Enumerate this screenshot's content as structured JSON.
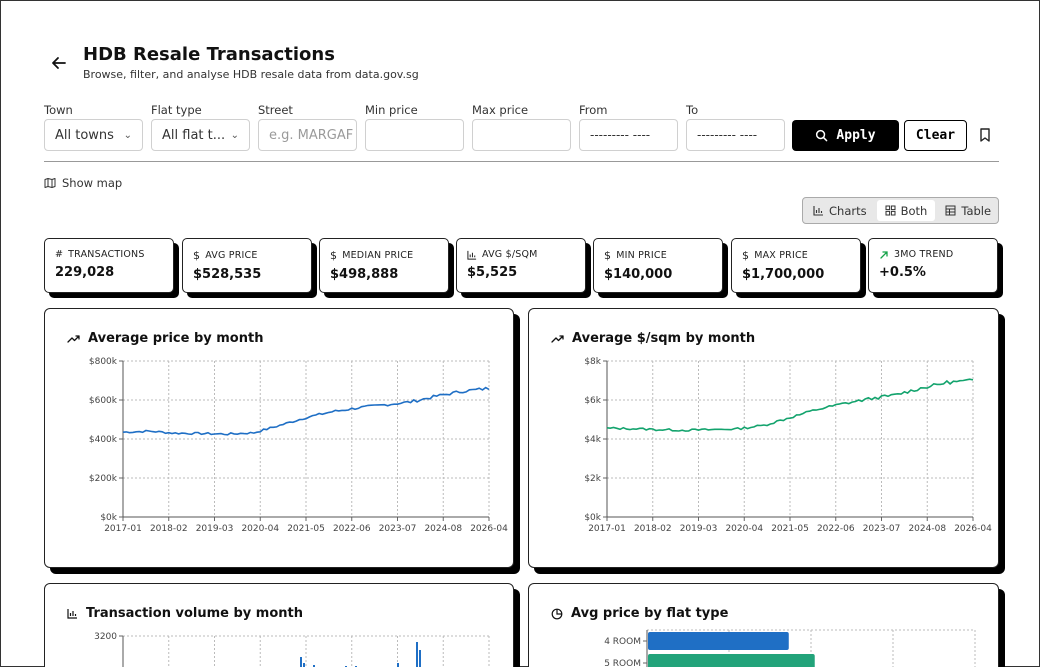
{
  "header": {
    "title": "HDB Resale Transactions",
    "subtitle": "Browse, filter, and analyse HDB resale data from data.gov.sg"
  },
  "filters": {
    "town": {
      "label": "Town",
      "value": "All towns"
    },
    "flat_type": {
      "label": "Flat type",
      "value": "All flat t..."
    },
    "street": {
      "label": "Street",
      "placeholder": "e.g. MARGAF"
    },
    "min_price": {
      "label": "Min price",
      "value": ""
    },
    "max_price": {
      "label": "Max price",
      "value": ""
    },
    "from": {
      "label": "From",
      "value": "--------- ----"
    },
    "to": {
      "label": "To",
      "value": "--------- ----"
    },
    "apply_label": "Apply",
    "clear_label": "Clear"
  },
  "show_map_label": "Show map",
  "view_toggle": {
    "options": [
      "Charts",
      "Both",
      "Table"
    ],
    "selected": "Both"
  },
  "stats": [
    {
      "label": "TRANSACTIONS",
      "value": "229,028",
      "icon": "hash-icon"
    },
    {
      "label": "AVG PRICE",
      "value": "$528,535",
      "icon": "dollar-icon"
    },
    {
      "label": "MEDIAN PRICE",
      "value": "$498,888",
      "icon": "dollar-icon"
    },
    {
      "label": "AVG $/SQM",
      "value": "$5,525",
      "icon": "bar-chart-icon"
    },
    {
      "label": "MIN PRICE",
      "value": "$140,000",
      "icon": "dollar-icon"
    },
    {
      "label": "MAX PRICE",
      "value": "$1,700,000",
      "icon": "dollar-icon"
    },
    {
      "label": "3MO TREND",
      "value": "+0.5%",
      "icon": "trend-up-icon",
      "color": "#16a34a"
    }
  ],
  "panels": {
    "avg_price_title": "Average price by month",
    "avg_sqm_title": "Average $/sqm by month",
    "volume_title": "Transaction volume by month",
    "flat_type_title": "Avg price by flat type"
  },
  "chart_data": [
    {
      "type": "line",
      "title": "Average price by month",
      "color": "#1f6fc5",
      "x_ticks": [
        "2017-01",
        "2018-02",
        "2019-03",
        "2020-04",
        "2021-05",
        "2022-06",
        "2023-07",
        "2024-08",
        "2026-04"
      ],
      "y_ticks": [
        "$0k",
        "$200k",
        "$400k",
        "$600k",
        "$800k"
      ],
      "ylim": [
        0,
        800000
      ],
      "series": [
        {
          "values": [
            435000,
            440000,
            430000,
            428000,
            425000,
            432000,
            470000,
            510000,
            540000,
            560000,
            575000,
            590000,
            620000,
            645000,
            660000
          ]
        }
      ]
    },
    {
      "type": "line",
      "title": "Average $/sqm by month",
      "color": "#13a36d",
      "x_ticks": [
        "2017-01",
        "2018-02",
        "2019-03",
        "2020-04",
        "2021-05",
        "2022-06",
        "2023-07",
        "2024-08",
        "2026-04"
      ],
      "y_ticks": [
        "$0k",
        "$2k",
        "$4k",
        "$6k",
        "$8k"
      ],
      "ylim": [
        0,
        8000
      ],
      "series": [
        {
          "values": [
            4550,
            4530,
            4480,
            4450,
            4480,
            4520,
            4700,
            5100,
            5500,
            5800,
            6050,
            6250,
            6600,
            6900,
            7000
          ]
        }
      ]
    },
    {
      "type": "bar",
      "title": "Transaction volume by month",
      "color": "#1f6fc5",
      "y_ticks": [
        "3200"
      ]
    },
    {
      "type": "bar",
      "title": "Avg price by flat type",
      "categories": [
        "4 ROOM",
        "5 ROOM"
      ],
      "colors": [
        "#1f6fc5",
        "#22a37a"
      ],
      "values": [
        515000,
        610000
      ],
      "xlim": [
        0,
        1200000
      ]
    }
  ]
}
